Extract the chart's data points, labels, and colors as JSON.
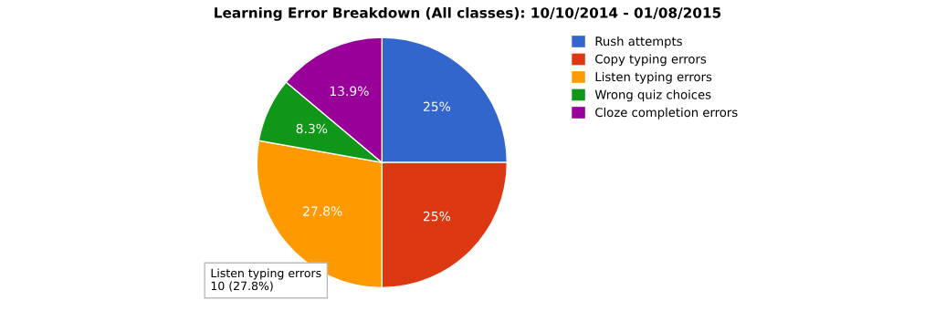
{
  "chart_data": {
    "type": "pie",
    "title": "Learning Error Breakdown (All classes): 10/10/2014 - 01/08/2015",
    "categories": [
      "Rush attempts",
      "Copy typing errors",
      "Listen typing errors",
      "Wrong quiz choices",
      "Cloze completion errors"
    ],
    "values": [
      25,
      25,
      27.8,
      8.3,
      13.9
    ],
    "colors": [
      "#3366cc",
      "#dc3912",
      "#ff9900",
      "#109618",
      "#990099"
    ],
    "value_labels": [
      "25%",
      "25%",
      "27.8%",
      "8.3%",
      "13.9%"
    ],
    "legend": "right",
    "annotations": [
      "Listen typing errors\n10 (27.8%)"
    ]
  }
}
